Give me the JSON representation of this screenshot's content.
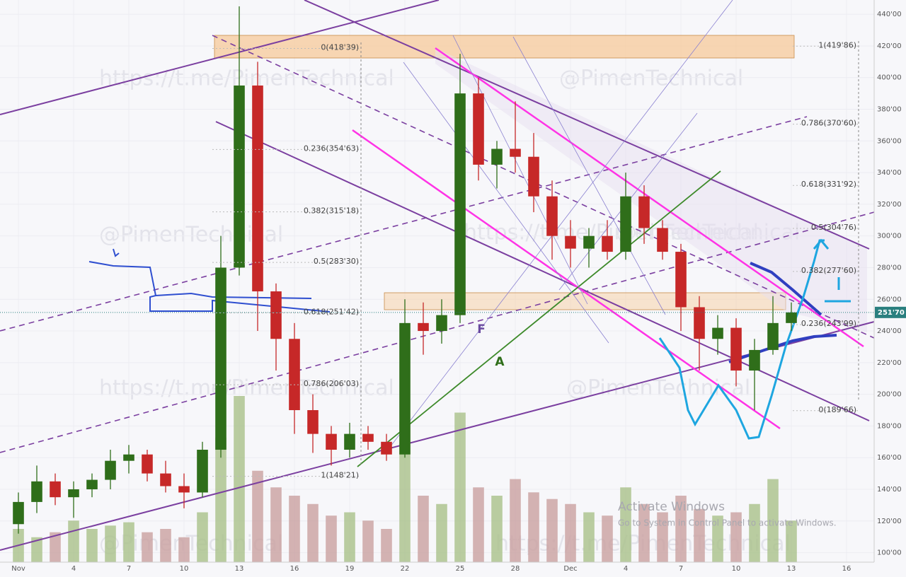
{
  "chart_data": {
    "type": "candlestick",
    "xlim": [
      -1,
      46.5
    ],
    "ylim": [
      94,
      449
    ],
    "yticks": [
      {
        "value": 100,
        "label": "100'00"
      },
      {
        "value": 120,
        "label": "120'00"
      },
      {
        "value": 140,
        "label": "140'00"
      },
      {
        "value": 160,
        "label": "160'00"
      },
      {
        "value": 180,
        "label": "180'00"
      },
      {
        "value": 200,
        "label": "200'00"
      },
      {
        "value": 220,
        "label": "220'00"
      },
      {
        "value": 240,
        "label": "240'00"
      },
      {
        "value": 260,
        "label": "260'00"
      },
      {
        "value": 280,
        "label": "280'00"
      },
      {
        "value": 300,
        "label": "300'00"
      },
      {
        "value": 320,
        "label": "320'00"
      },
      {
        "value": 340,
        "label": "340'00"
      },
      {
        "value": 360,
        "label": "360'00"
      },
      {
        "value": 380,
        "label": "380'00"
      },
      {
        "value": 400,
        "label": "400'00"
      },
      {
        "value": 420,
        "label": "420'00"
      },
      {
        "value": 440,
        "label": "440'00"
      }
    ],
    "xticks": [
      {
        "value": 0,
        "label": "Nov"
      },
      {
        "value": 3,
        "label": "4"
      },
      {
        "value": 6,
        "label": "7"
      },
      {
        "value": 9,
        "label": "10"
      },
      {
        "value": 12,
        "label": "13"
      },
      {
        "value": 15,
        "label": "16"
      },
      {
        "value": 18,
        "label": "19"
      },
      {
        "value": 21,
        "label": "22"
      },
      {
        "value": 24,
        "label": "25"
      },
      {
        "value": 27,
        "label": "28"
      },
      {
        "value": 30,
        "label": "Dec"
      },
      {
        "value": 33,
        "label": "4"
      },
      {
        "value": 36,
        "label": "7"
      },
      {
        "value": 39,
        "label": "10"
      },
      {
        "value": 42,
        "label": "13"
      },
      {
        "value": 45,
        "label": "16"
      }
    ],
    "x": [
      0,
      1,
      2,
      3,
      4,
      5,
      6,
      7,
      8,
      9,
      10,
      11,
      12,
      13,
      14,
      15,
      16,
      17,
      18,
      19,
      20,
      21,
      22,
      23,
      24,
      25,
      26,
      27,
      28,
      29,
      30,
      31,
      32,
      33,
      34,
      35,
      36,
      37,
      38,
      39,
      40,
      41,
      42
    ],
    "ohlc": [
      [
        118,
        138,
        112,
        132
      ],
      [
        132,
        155,
        125,
        145
      ],
      [
        145,
        150,
        130,
        135
      ],
      [
        135,
        145,
        122,
        140
      ],
      [
        140,
        150,
        135,
        146
      ],
      [
        146,
        165,
        140,
        158
      ],
      [
        158,
        168,
        150,
        162
      ],
      [
        162,
        165,
        145,
        150
      ],
      [
        150,
        158,
        138,
        142
      ],
      [
        142,
        150,
        128,
        138
      ],
      [
        138,
        170,
        135,
        165
      ],
      [
        165,
        300,
        160,
        280
      ],
      [
        280,
        445,
        275,
        395
      ],
      [
        395,
        410,
        240,
        265
      ],
      [
        265,
        270,
        215,
        235
      ],
      [
        235,
        245,
        175,
        190
      ],
      [
        190,
        200,
        163,
        175
      ],
      [
        175,
        180,
        155,
        165
      ],
      [
        165,
        182,
        160,
        175
      ],
      [
        175,
        180,
        165,
        170
      ],
      [
        170,
        175,
        158,
        162
      ],
      [
        162,
        260,
        160,
        245
      ],
      [
        245,
        258,
        225,
        240
      ],
      [
        240,
        260,
        232,
        250
      ],
      [
        250,
        415,
        245,
        390
      ],
      [
        390,
        400,
        335,
        345
      ],
      [
        345,
        360,
        330,
        355
      ],
      [
        355,
        385,
        340,
        350
      ],
      [
        350,
        365,
        315,
        325
      ],
      [
        325,
        335,
        285,
        300
      ],
      [
        300,
        310,
        280,
        292
      ],
      [
        292,
        305,
        280,
        300
      ],
      [
        300,
        310,
        285,
        290
      ],
      [
        290,
        340,
        285,
        325
      ],
      [
        325,
        332,
        295,
        305
      ],
      [
        305,
        310,
        285,
        290
      ],
      [
        290,
        295,
        240,
        255
      ],
      [
        255,
        262,
        215,
        235
      ],
      [
        235,
        250,
        225,
        242
      ],
      [
        242,
        248,
        205,
        215
      ],
      [
        215,
        235,
        190,
        228
      ],
      [
        228,
        262,
        225,
        245
      ],
      [
        245,
        258,
        240,
        251.7
      ]
    ],
    "up_color": "#2f6e1a",
    "down_color": "#c62828",
    "volume": [
      20,
      15,
      18,
      25,
      20,
      22,
      24,
      18,
      20,
      15,
      30,
      75,
      100,
      55,
      45,
      40,
      35,
      28,
      30,
      25,
      20,
      85,
      40,
      35,
      90,
      45,
      40,
      50,
      42,
      38,
      35,
      30,
      28,
      45,
      35,
      30,
      40,
      32,
      28,
      30,
      35,
      50,
      25
    ],
    "vlim": [
      0,
      100
    ],
    "volume_up_color": "#a9c08a",
    "volume_down_color": "#c9a0a0",
    "last_price": {
      "value": 251.7,
      "label": "251'70"
    },
    "fib_left": [
      {
        "value": 418.39,
        "label": "0(418'39)"
      },
      {
        "value": 354.63,
        "label": "0.236(354'63)"
      },
      {
        "value": 315.18,
        "label": "0.382(315'18)"
      },
      {
        "value": 283.3,
        "label": "0.5(283'30)"
      },
      {
        "value": 251.42,
        "label": "0.618(251'42)"
      },
      {
        "value": 206.03,
        "label": "0.786(206'03)"
      },
      {
        "value": 148.21,
        "label": "1(148'21)"
      }
    ],
    "fib_right": [
      {
        "value": 419.86,
        "label": "1(419'86)"
      },
      {
        "value": 370.6,
        "label": "0.786(370'60)"
      },
      {
        "value": 331.92,
        "label": "0.618(331'92)"
      },
      {
        "value": 304.76,
        "label": "0.5(304'76)"
      },
      {
        "value": 277.6,
        "label": "0.382(277'60)"
      },
      {
        "value": 243.99,
        "label": "0.236(243'99)"
      },
      {
        "value": 189.66,
        "label": "0(189'66)"
      }
    ],
    "annotations": [
      "A",
      "F"
    ],
    "watermarks": [
      "https://t.me/PimenTechnical",
      "@PimenTechnical",
      "@PimenTechnical",
      "https://t.me/PimenTechnical",
      "@PimenTechnical",
      "https://t.me/PimenTechnical",
      "@PimenTechnical",
      "@PimenTechnical",
      "https://t.me/PimenTechnical"
    ]
  },
  "os_notice": {
    "title": "Activate Windows",
    "text": "Go to System in Control Panel to activate Windows."
  }
}
